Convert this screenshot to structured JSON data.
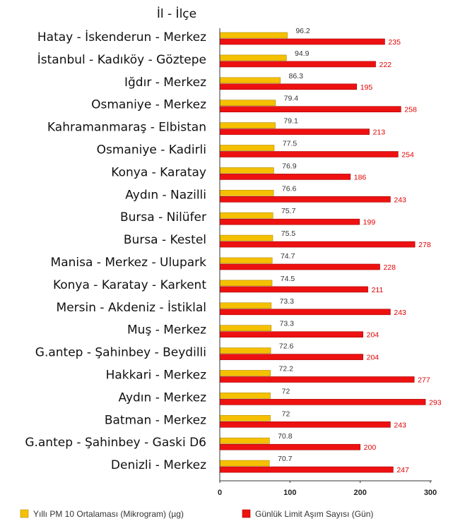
{
  "header": "İl - İlçe",
  "colors": {
    "series1": "#f5c000",
    "series1_edge": "#b08a00",
    "series2": "#ee1111",
    "series2_edge": "#a30000",
    "label1": "#333333",
    "label2": "#e00000",
    "axis": "#333333"
  },
  "chart_data": {
    "type": "bar",
    "orientation": "horizontal",
    "categories": [
      "Hatay - İskenderun - Merkez",
      "İstanbul - Kadıköy - Göztepe",
      "Iğdır - Merkez",
      "Osmaniye - Merkez",
      "Kahramanmaraş - Elbistan",
      "Osmaniye - Kadirli",
      "Konya - Karatay",
      "Aydın - Nazilli",
      "Bursa - Nilüfer",
      "Bursa - Kestel",
      "Manisa - Merkez - Ulupark",
      "Konya - Karatay - Karkent",
      "Mersin - Akdeniz - İstiklal",
      "Muş - Merkez",
      "G.antep - Şahinbey - Beydilli",
      "Hakkari - Merkez",
      "Aydın - Merkez",
      "Batman - Merkez",
      "G.antep - Şahinbey - Gaski D6",
      "Denizli - Merkez"
    ],
    "series": [
      {
        "name": "Yıllı PM 10 Ortalaması (Mikrogram) (µg)",
        "values": [
          96.2,
          94.9,
          86.3,
          79.4,
          79.1,
          77.5,
          76.9,
          76.6,
          75.7,
          75.5,
          74.7,
          74.5,
          73.3,
          73.3,
          72.6,
          72.2,
          72,
          72,
          70.8,
          70.7
        ]
      },
      {
        "name": "Günlük Limit Aşım Sayısı (Gün)",
        "values": [
          235,
          222,
          195,
          258,
          213,
          254,
          186,
          243,
          199,
          278,
          228,
          211,
          243,
          204,
          204,
          277,
          293,
          243,
          200,
          247
        ]
      }
    ],
    "xticks": [
      "0",
      "100",
      "200",
      "300"
    ],
    "xlim": [
      0,
      300
    ],
    "grid": false,
    "legend_position": "bottom"
  }
}
